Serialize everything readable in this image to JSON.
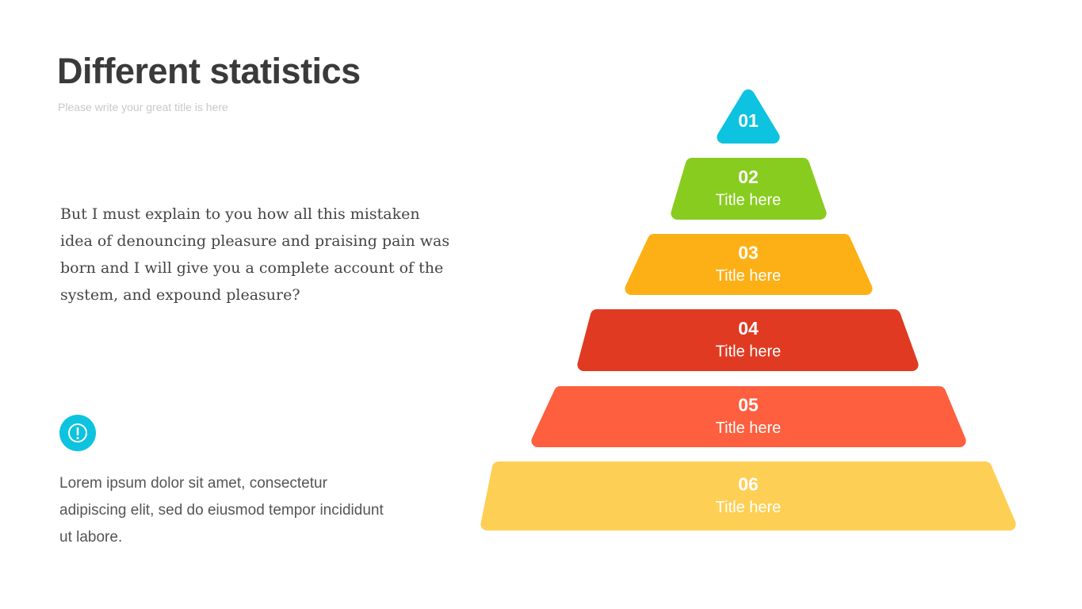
{
  "header": {
    "title": "Different statistics",
    "subtitle": "Please write your great title is here"
  },
  "body": {
    "paragraph": "But I must explain to you how all this mistaken idea of denouncing pleasure and praising pain was born and I will give you a complete account of the system, and expound pleasure?",
    "note": "Lorem ipsum dolor sit amet, consectetur adipiscing elit, sed do eiusmod tempor incididunt ut labore."
  },
  "pyramid": {
    "levels": [
      {
        "number": "01",
        "color": "#0dc3df"
      },
      {
        "number": "02",
        "label": "Title here",
        "color": "#88cc1f"
      },
      {
        "number": "03",
        "label": "Title here",
        "color": "#fdb016"
      },
      {
        "number": "04",
        "label": "Title here",
        "color": "#e03a22"
      },
      {
        "number": "05",
        "label": "Title here",
        "color": "#fe5f3e"
      },
      {
        "number": "06",
        "label": "Title here",
        "color": "#fdcf55"
      }
    ]
  }
}
